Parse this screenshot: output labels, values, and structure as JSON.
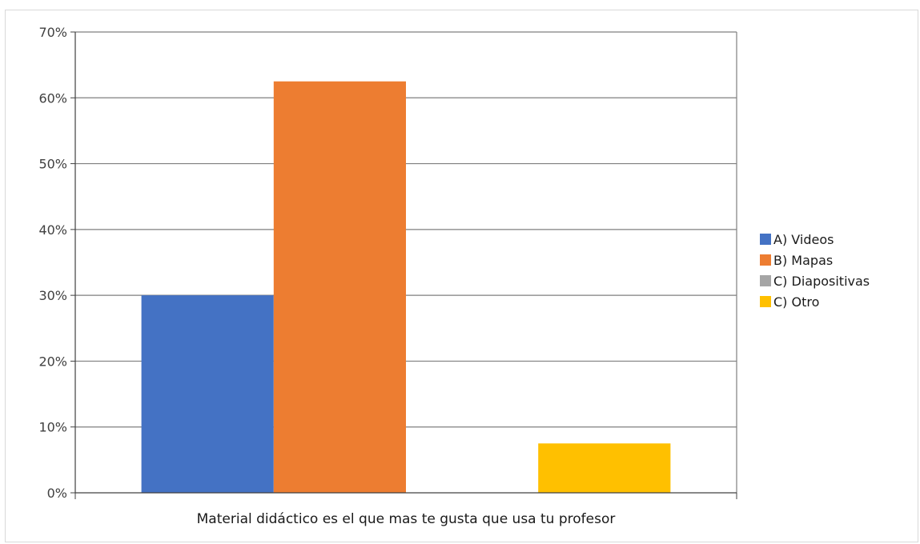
{
  "chart_data": {
    "type": "bar",
    "categories": [
      "Material didáctico es el que mas te gusta que usa tu profesor"
    ],
    "series": [
      {
        "name": "A) Videos",
        "values": [
          0.3
        ],
        "color": "#4472C4"
      },
      {
        "name": "B) Mapas",
        "values": [
          0.625
        ],
        "color": "#ED7D31"
      },
      {
        "name": "C) Diapositivas",
        "values": [
          0.0
        ],
        "color": "#A5A5A5"
      },
      {
        "name": "C) Otro",
        "values": [
          0.075
        ],
        "color": "#FFC000"
      }
    ],
    "ylim": [
      0,
      0.7
    ],
    "yticks": [
      0,
      0.1,
      0.2,
      0.3,
      0.4,
      0.5,
      0.6,
      0.7
    ],
    "ytick_labels": [
      "0%",
      "10%",
      "20%",
      "30%",
      "40%",
      "50%",
      "60%",
      "70%"
    ],
    "grid": true,
    "legend_position": "right"
  }
}
